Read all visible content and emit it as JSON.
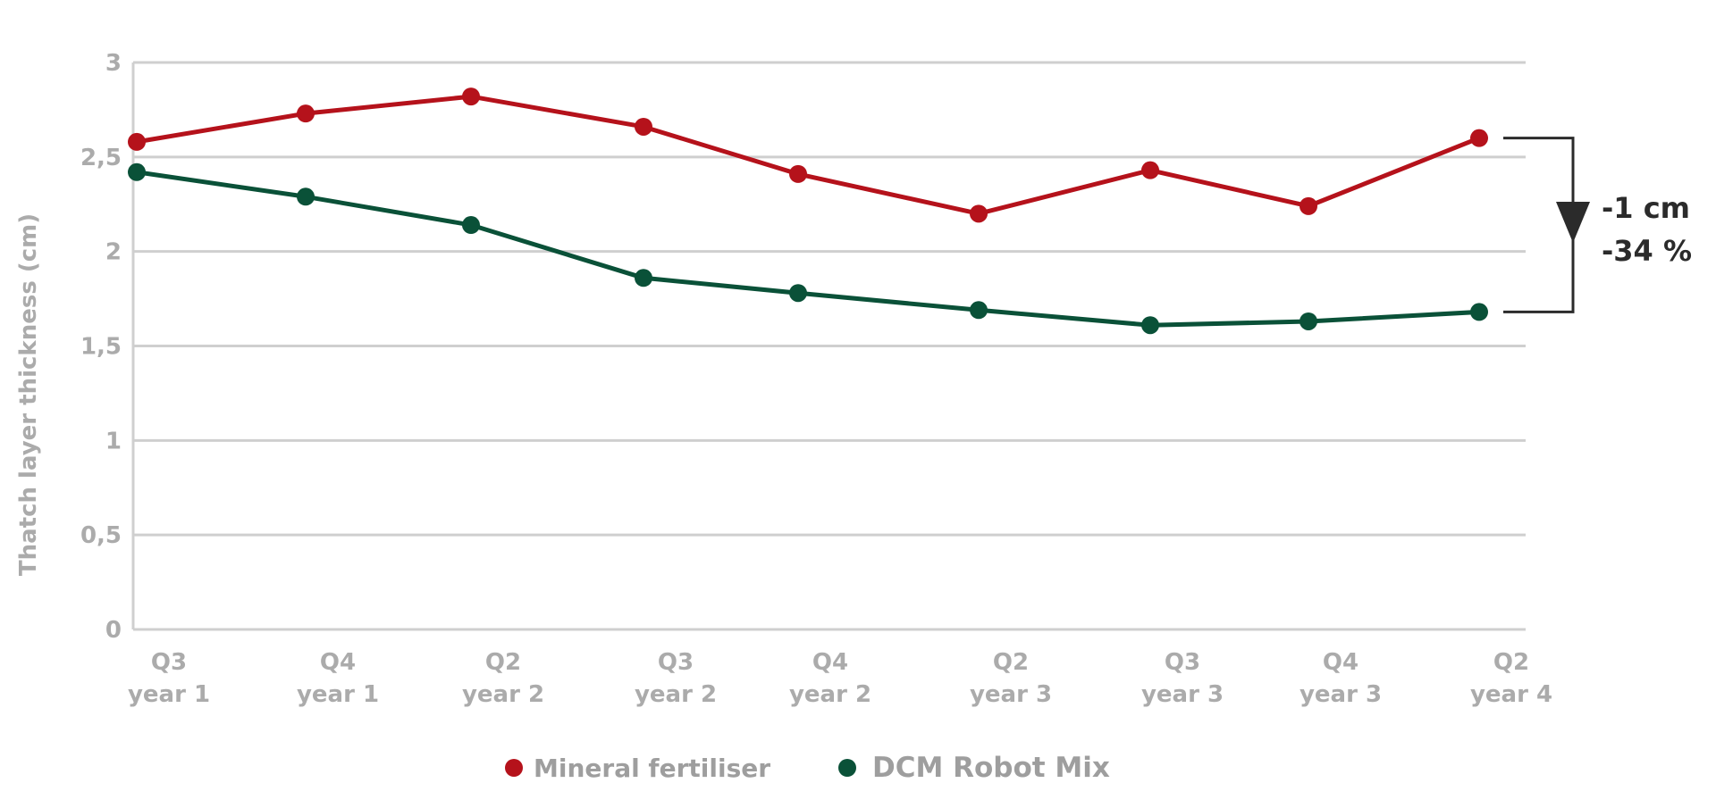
{
  "chart_data": {
    "type": "line",
    "title": "",
    "ylabel": "Thatch layer thickness (cm)",
    "xlabel": "",
    "ylim": [
      0,
      3
    ],
    "yticks": [
      {
        "value": 0,
        "label": "0"
      },
      {
        "value": 0.5,
        "label": "0,5"
      },
      {
        "value": 1,
        "label": "1"
      },
      {
        "value": 1.5,
        "label": "1,5"
      },
      {
        "value": 2,
        "label": "2"
      },
      {
        "value": 2.5,
        "label": "2,5"
      },
      {
        "value": 3,
        "label": "3"
      }
    ],
    "grid": true,
    "categories": [
      {
        "q": "Q3",
        "year": "year 1"
      },
      {
        "q": "Q4",
        "year": "year 1"
      },
      {
        "q": "Q2",
        "year": "year 2"
      },
      {
        "q": "Q3",
        "year": "year 2"
      },
      {
        "q": "Q4",
        "year": "year 2"
      },
      {
        "q": "Q2",
        "year": "year 3"
      },
      {
        "q": "Q3",
        "year": "year 3"
      },
      {
        "q": "Q4",
        "year": "year 3"
      },
      {
        "q": "Q2",
        "year": "year 4"
      }
    ],
    "series": [
      {
        "name": "Mineral fertiliser",
        "color": "#b5121b",
        "values": [
          2.58,
          2.73,
          2.82,
          2.66,
          2.41,
          2.2,
          2.43,
          2.24,
          2.6
        ]
      },
      {
        "name": "DCM Robot Mix",
        "color": "#0a5138",
        "values": [
          2.42,
          2.29,
          2.14,
          1.86,
          1.78,
          1.69,
          1.61,
          1.63,
          1.68
        ]
      }
    ],
    "legend_position": "bottom",
    "annotation": {
      "line1": "-1 cm",
      "line2": "-34 %",
      "color": "#2b2b2b"
    },
    "colors": {
      "grid": "#cfcfcf",
      "tick": "#ababab"
    }
  }
}
